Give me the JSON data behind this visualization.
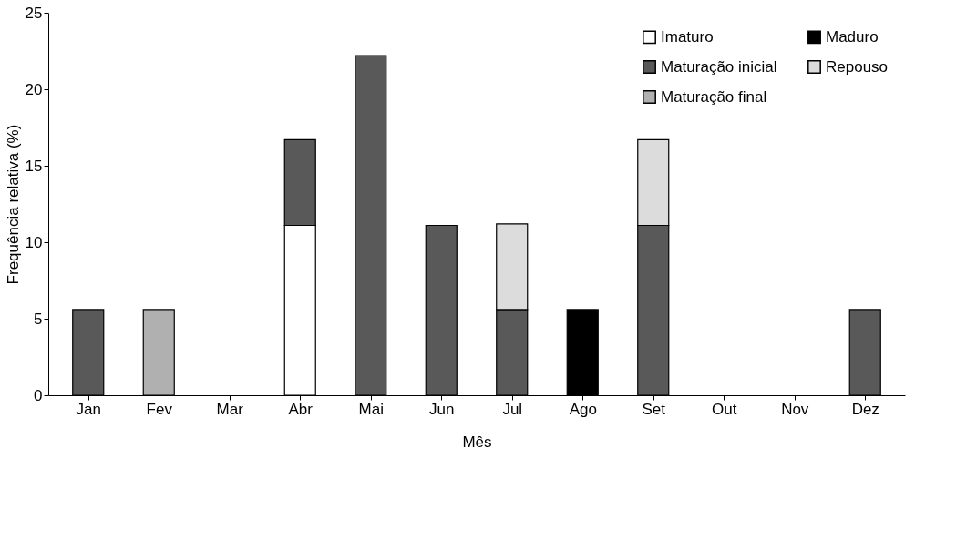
{
  "chart_data": {
    "type": "bar",
    "stacked": true,
    "xlabel": "Mês",
    "ylabel": "Frequência relativa (%)",
    "categories": [
      "Jan",
      "Fev",
      "Mar",
      "Abr",
      "Mai",
      "Jun",
      "Jul",
      "Ago",
      "Set",
      "Out",
      "Nov",
      "Dez"
    ],
    "series": [
      {
        "name": "Imaturo",
        "color": "#ffffff",
        "values": [
          null,
          null,
          null,
          11.1,
          null,
          null,
          null,
          null,
          null,
          null,
          null,
          null
        ]
      },
      {
        "name": "Maturação inicial",
        "color": "#595959",
        "values": [
          5.6,
          null,
          null,
          5.6,
          22.2,
          11.1,
          5.6,
          null,
          11.1,
          null,
          null,
          5.6
        ]
      },
      {
        "name": "Maturação final",
        "color": "#b0b0b0",
        "values": [
          null,
          5.6,
          null,
          null,
          null,
          null,
          null,
          null,
          null,
          null,
          null,
          null
        ]
      },
      {
        "name": "Maduro",
        "color": "#000000",
        "values": [
          null,
          null,
          null,
          null,
          null,
          null,
          null,
          5.6,
          null,
          null,
          null,
          null
        ]
      },
      {
        "name": "Repouso",
        "color": "#dcdcdc",
        "values": [
          null,
          null,
          null,
          null,
          null,
          null,
          5.6,
          null,
          5.6,
          null,
          null,
          null
        ]
      }
    ],
    "ylim": [
      0,
      25
    ],
    "yticks": [
      0,
      5,
      10,
      15,
      20,
      25
    ],
    "grid": false,
    "legend": "top right"
  }
}
